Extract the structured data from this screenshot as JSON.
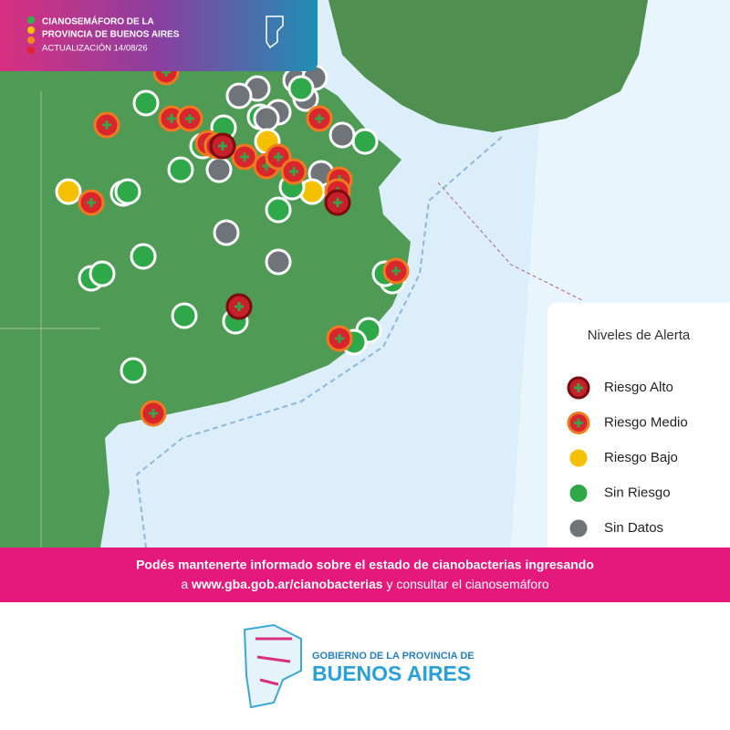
{
  "header": {
    "title_line1": "CIANOSEMÁFORO DE LA",
    "title_line2": "PROVINCIA DE BUENOS AIRES",
    "update": "ACTUALIZACIÓN 14/08/26"
  },
  "legend": {
    "title": "Niveles de Alerta",
    "items": [
      "Riesgo Alto",
      "Riesgo Medio",
      "Riesgo Bajo",
      "Sin Riesgo",
      "Sin Datos"
    ]
  },
  "banner": {
    "line1": "Podés mantenerte informado sobre el estado de cianobacterias ingresando",
    "line2_start": "a",
    "link": "www.gba.gob.ar/cianobacterias",
    "line2_end": "y consultar el cianosemáforo"
  },
  "footer": {
    "org_line1": "GOBIERNO DE LA PROVINCIA DE",
    "org_line2": "BUENOS AIRES"
  }
}
